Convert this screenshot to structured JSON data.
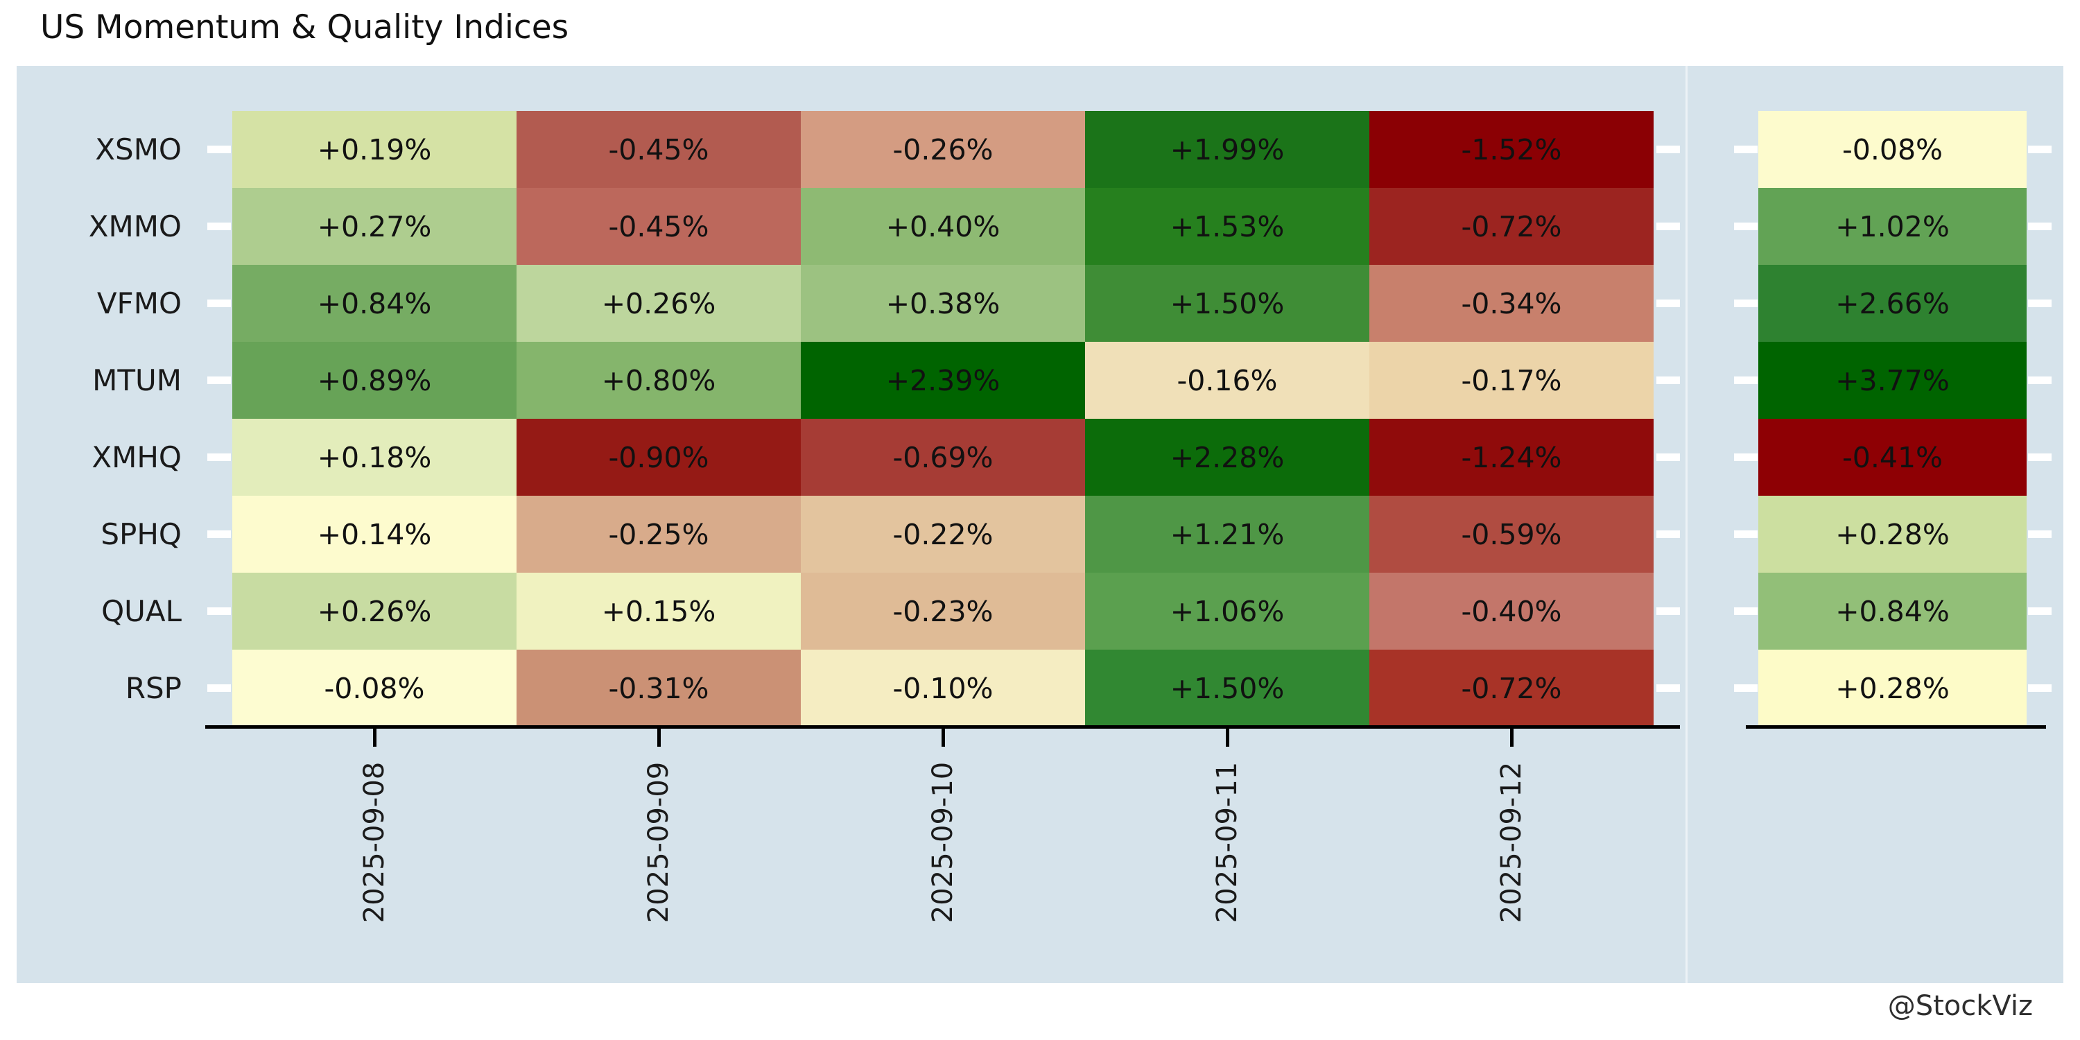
{
  "title": "US Momentum & Quality Indices",
  "watermark": "@StockViz",
  "colors": {
    "page_bg": "#ffffff",
    "panel_bg": "#d6e3eb",
    "axis": "#000000",
    "tick_dash": "#ffffff",
    "text": "#111111",
    "max_green": "#006400",
    "min_red": "#8b0004",
    "mid_yellow": "#fdfbce"
  },
  "chart_data": {
    "type": "heatmap",
    "title": "US Momentum & Quality Indices",
    "rows": [
      "XSMO",
      "XMMO",
      "VFMO",
      "MTUM",
      "XMHQ",
      "SPHQ",
      "QUAL",
      "RSP"
    ],
    "columns": [
      "2025-09-08",
      "2025-09-09",
      "2025-09-10",
      "2025-09-11",
      "2025-09-12"
    ],
    "values": [
      [
        0.19,
        -0.45,
        -0.26,
        1.99,
        -1.52
      ],
      [
        0.27,
        -0.45,
        0.4,
        1.53,
        -0.72
      ],
      [
        0.84,
        0.26,
        0.38,
        1.5,
        -0.34
      ],
      [
        0.89,
        0.8,
        2.39,
        -0.16,
        -0.17
      ],
      [
        0.18,
        -0.9,
        -0.69,
        2.28,
        -1.24
      ],
      [
        0.14,
        -0.25,
        -0.22,
        1.21,
        -0.59
      ],
      [
        0.26,
        0.15,
        -0.23,
        1.06,
        -0.4
      ],
      [
        -0.08,
        -0.31,
        -0.1,
        1.5,
        -0.72
      ]
    ],
    "cell_labels": [
      [
        "+0.19%",
        "-0.45%",
        "-0.26%",
        "+1.99%",
        "-1.52%"
      ],
      [
        "+0.27%",
        "-0.45%",
        "+0.40%",
        "+1.53%",
        "-0.72%"
      ],
      [
        "+0.84%",
        "+0.26%",
        "+0.38%",
        "+1.50%",
        "-0.34%"
      ],
      [
        "+0.89%",
        "+0.80%",
        "+2.39%",
        "-0.16%",
        "-0.17%"
      ],
      [
        "+0.18%",
        "-0.90%",
        "-0.69%",
        "+2.28%",
        "-1.24%"
      ],
      [
        "+0.14%",
        "-0.25%",
        "-0.22%",
        "+1.21%",
        "-0.59%"
      ],
      [
        "+0.26%",
        "+0.15%",
        "-0.23%",
        "+1.06%",
        "-0.40%"
      ],
      [
        "-0.08%",
        "-0.31%",
        "-0.10%",
        "+1.50%",
        "-0.72%"
      ]
    ],
    "cell_colors": [
      [
        "#d5e2a5",
        "#b25b50",
        "#d49c82",
        "#1b7419",
        "#8b0004"
      ],
      [
        "#aecd8f",
        "#bc685c",
        "#8eba73",
        "#26801e",
        "#9c2420"
      ],
      [
        "#76ac63",
        "#bdd69d",
        "#9cc281",
        "#3f8d36",
        "#c8806c"
      ],
      [
        "#67a357",
        "#85b56c",
        "#006400",
        "#f0e0b8",
        "#ecd4a9"
      ],
      [
        "#e3edbb",
        "#951a15",
        "#a63c35",
        "#0c6c0a",
        "#900b0b"
      ],
      [
        "#fdfbce",
        "#d8ab8b",
        "#e3c49e",
        "#4f9746",
        "#b04c41"
      ],
      [
        "#c8dca2",
        "#f0f2c0",
        "#dfbb96",
        "#5ba04f",
        "#c3766a"
      ],
      [
        "#fdfcd1",
        "#cb9175",
        "#f5edc2",
        "#318832",
        "#a83327"
      ]
    ],
    "summary_column": {
      "values": [
        -0.08,
        1.02,
        2.66,
        3.77,
        -0.41,
        0.28,
        0.84,
        0.28
      ],
      "labels": [
        "-0.08%",
        "+1.02%",
        "+2.66%",
        "+3.77%",
        "-0.41%",
        "+0.28%",
        "+0.84%",
        "+0.28%"
      ],
      "colors": [
        "#fdfbcd",
        "#62a355",
        "#2e8230",
        "#006400",
        "#8e0004",
        "#ccdfa0",
        "#92bf78",
        "#fdfbc8"
      ]
    },
    "colormap": "diverging red-yellow-green (dark red = worst, pale yellow = middle, dark green = best)",
    "legend": "none",
    "grid": "off",
    "x_tick_rotation": 90
  }
}
